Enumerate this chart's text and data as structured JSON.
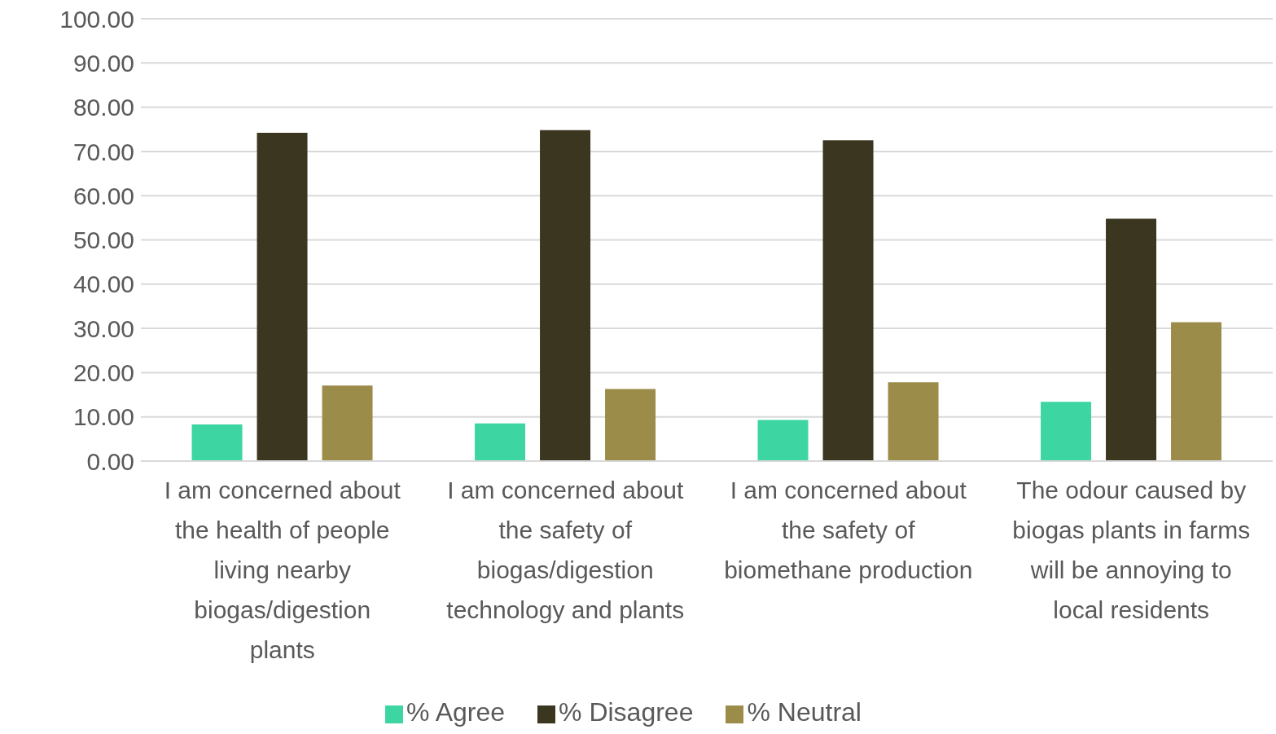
{
  "chart_data": {
    "type": "bar",
    "categories": [
      "I am concerned about the health of people living nearby biogas/digestion plants",
      "I am concerned about the safety of biogas/digestion technology and plants",
      "I am concerned about the safety of biomethane production",
      "The odour caused by biogas plants in farms will be annoying to local residents"
    ],
    "series": [
      {
        "name": "% Agree",
        "color": "#3dd6a3",
        "values": [
          8.3,
          8.5,
          9.3,
          13.4
        ]
      },
      {
        "name": "% Disagree",
        "color": "#3b3620",
        "values": [
          74.2,
          74.8,
          72.5,
          54.8
        ]
      },
      {
        "name": "% Neutral",
        "color": "#9c8c4a",
        "values": [
          17.1,
          16.3,
          17.8,
          31.4
        ]
      }
    ],
    "ylim": [
      0,
      100
    ],
    "yticks": [
      {
        "value": 0,
        "label": "0.00"
      },
      {
        "value": 10,
        "label": "10.00"
      },
      {
        "value": 20,
        "label": "20.00"
      },
      {
        "value": 30,
        "label": "30.00"
      },
      {
        "value": 40,
        "label": "40.00"
      },
      {
        "value": 50,
        "label": "50.00"
      },
      {
        "value": 60,
        "label": "60.00"
      },
      {
        "value": 70,
        "label": "70.00"
      },
      {
        "value": 80,
        "label": "80.00"
      },
      {
        "value": 90,
        "label": "90.00"
      },
      {
        "value": 100,
        "label": "100.00"
      }
    ],
    "grid": "y",
    "legend": "bottom"
  }
}
